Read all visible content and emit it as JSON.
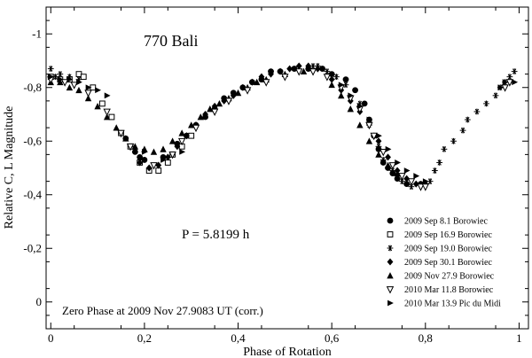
{
  "chart_data": {
    "type": "scatter",
    "title": "770 Bali",
    "period_label": "P = 5.8199 h",
    "zero_phase_label": "Zero Phase at 2009  Nov 27.9083 UT (corr.)",
    "xlabel": "Phase of Rotation",
    "ylabel": "Relative C, L Magnitude",
    "xlim": [
      -0.01,
      1.02
    ],
    "ylim": [
      0.1,
      -1.1
    ],
    "y_inverted": true,
    "xticks": [
      0,
      0.2,
      0.4,
      0.6,
      0.8,
      1
    ],
    "xtick_labels": [
      "0",
      "0,2",
      "0,4",
      "0,6",
      "0,8",
      "1"
    ],
    "yticks": [
      0,
      -0.2,
      -0.4,
      -0.6,
      -0.8,
      -1
    ],
    "ytick_labels": [
      "0",
      "-0,2",
      "-0,4",
      "-0,6",
      "-0,8",
      "-1"
    ],
    "legend_position": "lower-right",
    "series": [
      {
        "name": "2009 Sep 8.1 Borowiec",
        "marker": "circle",
        "points": [
          [
            0.16,
            -0.61
          ],
          [
            0.18,
            -0.56
          ],
          [
            0.19,
            -0.54
          ],
          [
            0.2,
            -0.53
          ],
          [
            0.24,
            -0.54
          ],
          [
            0.27,
            -0.59
          ],
          [
            0.29,
            -0.62
          ],
          [
            0.31,
            -0.66
          ],
          [
            0.33,
            -0.69
          ],
          [
            0.35,
            -0.72
          ],
          [
            0.37,
            -0.76
          ],
          [
            0.39,
            -0.78
          ],
          [
            0.41,
            -0.8
          ],
          [
            0.43,
            -0.82
          ],
          [
            0.45,
            -0.83
          ],
          [
            0.47,
            -0.86
          ],
          [
            0.49,
            -0.86
          ],
          [
            0.52,
            -0.87
          ],
          [
            0.55,
            -0.87
          ],
          [
            0.58,
            -0.87
          ],
          [
            0.6,
            -0.85
          ],
          [
            0.63,
            -0.83
          ],
          [
            0.65,
            -0.79
          ],
          [
            0.67,
            -0.74
          ],
          [
            0.68,
            -0.68
          ],
          [
            0.69,
            -0.62
          ],
          [
            0.7,
            -0.57
          ],
          [
            0.71,
            -0.52
          ],
          [
            0.72,
            -0.5
          ],
          [
            0.73,
            -0.48
          ],
          [
            0.74,
            -0.46
          ],
          [
            0.76,
            -0.44
          ],
          [
            0.79,
            -0.44
          ]
        ]
      },
      {
        "name": "2009 Sep 16.9 Borowiec",
        "marker": "square-open",
        "points": [
          [
            0,
            -0.84
          ],
          [
            0.02,
            -0.83
          ],
          [
            0.04,
            -0.83
          ],
          [
            0.06,
            -0.85
          ],
          [
            0.07,
            -0.84
          ],
          [
            0.09,
            -0.8
          ],
          [
            0.11,
            -0.74
          ],
          [
            0.13,
            -0.69
          ],
          [
            0.15,
            -0.63
          ],
          [
            0.17,
            -0.58
          ],
          [
            0.19,
            -0.52
          ],
          [
            0.21,
            -0.49
          ],
          [
            0.23,
            -0.49
          ],
          [
            0.25,
            -0.52
          ],
          [
            0.26,
            -0.55
          ],
          [
            0.28,
            -0.58
          ],
          [
            0.3,
            -0.62
          ]
        ]
      },
      {
        "name": "2009 Sep 19.0 Borowiec",
        "marker": "asterisk",
        "points": [
          [
            0.0,
            -0.87
          ],
          [
            0.01,
            -0.84
          ],
          [
            0.02,
            -0.85
          ],
          [
            0.04,
            -0.84
          ],
          [
            0.06,
            -0.83
          ],
          [
            0.56,
            -0.88
          ],
          [
            0.57,
            -0.88
          ],
          [
            0.59,
            -0.86
          ],
          [
            0.61,
            -0.84
          ],
          [
            0.63,
            -0.81
          ],
          [
            0.66,
            -0.74
          ],
          [
            0.68,
            -0.66
          ],
          [
            0.7,
            -0.58
          ],
          [
            0.71,
            -0.53
          ],
          [
            0.73,
            -0.49
          ],
          [
            0.75,
            -0.45
          ],
          [
            0.77,
            -0.43
          ],
          [
            0.79,
            -0.44
          ],
          [
            0.81,
            -0.45
          ],
          [
            0.82,
            -0.49
          ],
          [
            0.83,
            -0.52
          ],
          [
            0.84,
            -0.57
          ],
          [
            0.86,
            -0.6
          ],
          [
            0.88,
            -0.64
          ],
          [
            0.89,
            -0.68
          ],
          [
            0.91,
            -0.71
          ],
          [
            0.93,
            -0.74
          ],
          [
            0.95,
            -0.77
          ],
          [
            0.96,
            -0.8
          ],
          [
            0.97,
            -0.82
          ],
          [
            0.98,
            -0.84
          ],
          [
            0.99,
            -0.86
          ]
        ]
      },
      {
        "name": "2009 Sep 30.1 Borowiec",
        "marker": "diamond",
        "points": [
          [
            0.19,
            -0.52
          ],
          [
            0.21,
            -0.5
          ],
          [
            0.23,
            -0.51
          ],
          [
            0.25,
            -0.54
          ],
          [
            0.27,
            -0.58
          ],
          [
            0.29,
            -0.62
          ],
          [
            0.31,
            -0.66
          ],
          [
            0.33,
            -0.7
          ],
          [
            0.35,
            -0.73
          ],
          [
            0.37,
            -0.75
          ],
          [
            0.39,
            -0.77
          ],
          [
            0.41,
            -0.8
          ],
          [
            0.43,
            -0.82
          ],
          [
            0.45,
            -0.84
          ],
          [
            0.47,
            -0.85
          ],
          [
            0.49,
            -0.86
          ],
          [
            0.51,
            -0.87
          ],
          [
            0.53,
            -0.88
          ],
          [
            0.55,
            -0.88
          ],
          [
            0.57,
            -0.87
          ],
          [
            0.6,
            -0.83
          ],
          [
            0.62,
            -0.79
          ],
          [
            0.64,
            -0.75
          ],
          [
            0.66,
            -0.71
          ],
          [
            0.68,
            -0.67
          ],
          [
            0.7,
            -0.6
          ],
          [
            0.72,
            -0.54
          ],
          [
            0.74,
            -0.49
          ],
          [
            0.76,
            -0.46
          ],
          [
            0.78,
            -0.44
          ],
          [
            0.8,
            -0.44
          ]
        ]
      },
      {
        "name": "2009 Nov 27.9 Borowiec",
        "marker": "triangle",
        "points": [
          [
            0.0,
            -0.82
          ],
          [
            0.02,
            -0.82
          ],
          [
            0.04,
            -0.8
          ],
          [
            0.06,
            -0.79
          ],
          [
            0.08,
            -0.76
          ],
          [
            0.1,
            -0.73
          ],
          [
            0.12,
            -0.69
          ],
          [
            0.14,
            -0.65
          ],
          [
            0.16,
            -0.61
          ],
          [
            0.18,
            -0.58
          ],
          [
            0.2,
            -0.57
          ],
          [
            0.22,
            -0.56
          ],
          [
            0.24,
            -0.57
          ],
          [
            0.26,
            -0.6
          ],
          [
            0.28,
            -0.63
          ],
          [
            0.3,
            -0.66
          ],
          [
            0.32,
            -0.69
          ],
          [
            0.34,
            -0.72
          ],
          [
            0.36,
            -0.74
          ],
          [
            0.38,
            -0.76
          ],
          [
            0.4,
            -0.78
          ],
          [
            0.42,
            -0.8
          ],
          [
            0.44,
            -0.82
          ],
          [
            0.46,
            -0.83
          ],
          [
            0.5,
            -0.85
          ],
          [
            0.54,
            -0.86
          ],
          [
            0.6,
            -0.81
          ],
          [
            0.62,
            -0.77
          ],
          [
            0.64,
            -0.72
          ],
          [
            0.66,
            -0.66
          ],
          [
            0.68,
            -0.6
          ],
          [
            0.7,
            -0.55
          ],
          [
            0.72,
            -0.51
          ],
          [
            0.74,
            -0.48
          ]
        ]
      },
      {
        "name": "2010 Mar 11.8 Borowiec",
        "marker": "triangle-down-open",
        "points": [
          [
            0.0,
            -0.83
          ],
          [
            0.03,
            -0.82
          ],
          [
            0.05,
            -0.81
          ],
          [
            0.08,
            -0.78
          ],
          [
            0.12,
            -0.71
          ],
          [
            0.15,
            -0.63
          ],
          [
            0.17,
            -0.58
          ],
          [
            0.22,
            -0.51
          ],
          [
            0.26,
            -0.55
          ],
          [
            0.28,
            -0.6
          ],
          [
            0.31,
            -0.65
          ],
          [
            0.35,
            -0.71
          ],
          [
            0.38,
            -0.75
          ],
          [
            0.42,
            -0.79
          ],
          [
            0.46,
            -0.82
          ],
          [
            0.5,
            -0.84
          ],
          [
            0.53,
            -0.86
          ],
          [
            0.56,
            -0.86
          ],
          [
            0.59,
            -0.84
          ],
          [
            0.62,
            -0.8
          ],
          [
            0.64,
            -0.76
          ],
          [
            0.66,
            -0.72
          ],
          [
            0.68,
            -0.66
          ],
          [
            0.69,
            -0.62
          ],
          [
            0.71,
            -0.56
          ],
          [
            0.73,
            -0.51
          ],
          [
            0.75,
            -0.47
          ],
          [
            0.77,
            -0.45
          ],
          [
            0.79,
            -0.43
          ],
          [
            0.8,
            -0.43
          ],
          [
            0.97,
            -0.8
          ],
          [
            0.98,
            -0.82
          ]
        ]
      },
      {
        "name": "2010 Mar 13.9 Pic du Midi",
        "marker": "triangle-right",
        "points": [
          [
            0.0,
            -0.84
          ],
          [
            0.02,
            -0.83
          ],
          [
            0.04,
            -0.83
          ],
          [
            0.06,
            -0.82
          ],
          [
            0.08,
            -0.8
          ],
          [
            0.1,
            -0.79
          ],
          [
            0.12,
            -0.77
          ],
          [
            0.2,
            -0.56
          ],
          [
            0.24,
            -0.53
          ],
          [
            0.28,
            -0.56
          ],
          [
            0.62,
            -0.81
          ],
          [
            0.64,
            -0.77
          ],
          [
            0.66,
            -0.73
          ],
          [
            0.68,
            -0.68
          ],
          [
            0.7,
            -0.62
          ],
          [
            0.72,
            -0.57
          ],
          [
            0.74,
            -0.52
          ],
          [
            0.76,
            -0.49
          ],
          [
            0.78,
            -0.47
          ],
          [
            0.8,
            -0.45
          ],
          [
            0.96,
            -0.8
          ],
          [
            0.97,
            -0.82
          ],
          [
            0.99,
            -0.82
          ]
        ]
      }
    ]
  }
}
